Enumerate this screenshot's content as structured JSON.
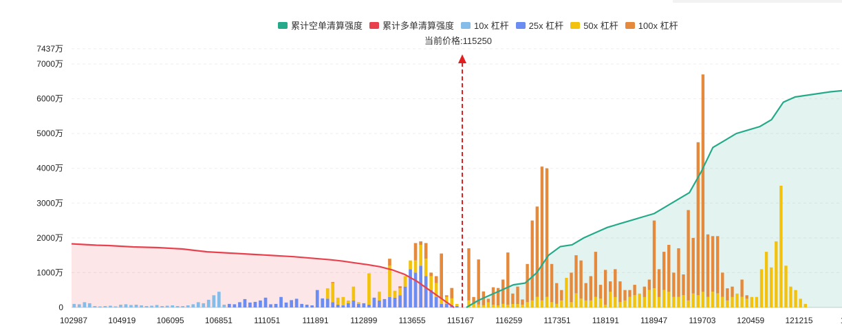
{
  "chart_data": {
    "type": "bar",
    "title": "",
    "price_label": "当前价格:115250",
    "current_price_marker": 115250,
    "y_unit": "万",
    "ylim": [
      0,
      7437
    ],
    "y_ticks": [
      "0",
      "1000万",
      "2000万",
      "3000万",
      "4000万",
      "5000万",
      "6000万",
      "7000万",
      "7437万"
    ],
    "x_ticks": [
      "102987",
      "104919",
      "106095",
      "106851",
      "111051",
      "111891",
      "112899",
      "113655",
      "115167",
      "116259",
      "117351",
      "118191",
      "118947",
      "119703",
      "120459",
      "121215",
      "122"
    ],
    "legend": [
      {
        "name": "累计空单清算强度",
        "color": "#26a98a"
      },
      {
        "name": "累计多单清算强度",
        "color": "#e8414d"
      },
      {
        "name": "10x 杠杆",
        "color": "#86bde8"
      },
      {
        "name": "25x 杠杆",
        "color": "#6b8cf0"
      },
      {
        "name": "50x 杠杆",
        "color": "#f2c20f"
      },
      {
        "name": "100x 杠杆",
        "color": "#e58a3c"
      }
    ],
    "bars_left": [
      {
        "lev10": 100
      },
      {
        "lev10": 90
      },
      {
        "lev10": 150
      },
      {
        "lev10": 120
      },
      {
        "lev10": 40
      },
      {
        "lev10": 30
      },
      {
        "lev10": 40
      },
      {
        "lev10": 50
      },
      {
        "lev10": 30
      },
      {
        "lev10": 80
      },
      {
        "lev10": 90
      },
      {
        "lev10": 70
      },
      {
        "lev10": 80
      },
      {
        "lev10": 60
      },
      {
        "lev10": 40
      },
      {
        "lev10": 50
      },
      {
        "lev10": 70
      },
      {
        "lev10": 40
      },
      {
        "lev10": 50
      },
      {
        "lev10": 60
      },
      {
        "lev10": 40
      },
      {
        "lev10": 40
      },
      {
        "lev10": 60
      },
      {
        "lev10": 90
      },
      {
        "lev10": 150
      },
      {
        "lev10": 120
      },
      {
        "lev10": 220
      },
      {
        "lev10": 350
      },
      {
        "lev10": 450
      },
      {
        "lev10": 80
      },
      {
        "lev25": 100
      },
      {
        "lev25": 90
      },
      {
        "lev25": 150
      },
      {
        "lev25": 240
      },
      {
        "lev25": 140
      },
      {
        "lev25": 160
      },
      {
        "lev25": 200
      },
      {
        "lev25": 280
      },
      {
        "lev25": 90
      },
      {
        "lev25": 100
      },
      {
        "lev25": 300
      },
      {
        "lev25": 140
      },
      {
        "lev25": 210
      },
      {
        "lev25": 250
      },
      {
        "lev25": 100
      },
      {
        "lev25": 80
      },
      {
        "lev25": 60
      },
      {
        "lev25": 500
      },
      {
        "lev25": 260
      },
      {
        "lev25": 250,
        "lev50": 300,
        "lev100": 0
      },
      {
        "lev25": 150,
        "lev50": 550,
        "lev100": 30
      },
      {
        "lev25": 80,
        "lev50": 200
      },
      {
        "lev25": 60,
        "lev50": 240
      },
      {
        "lev25": 120,
        "lev50": 80
      },
      {
        "lev25": 200,
        "lev50": 400
      },
      {
        "lev25": 100,
        "lev50": 50
      },
      {
        "lev25": 120
      },
      {
        "lev25": 80,
        "lev50": 900
      },
      {
        "lev25": 280
      },
      {
        "lev25": 200,
        "lev50": 250
      },
      {
        "lev25": 240
      },
      {
        "lev25": 300,
        "lev50": 900,
        "lev100": 200
      },
      {
        "lev25": 280,
        "lev50": 200
      },
      {
        "lev25": 350,
        "lev50": 200,
        "lev100": 60
      },
      {
        "lev25": 600,
        "lev50": 300,
        "lev100": 0
      },
      {
        "lev25": 1100,
        "lev50": 250,
        "lev100": 0
      },
      {
        "lev25": 1000,
        "lev50": 350,
        "lev100": 500
      },
      {
        "lev25": 1200,
        "lev50": 600,
        "lev100": 100
      },
      {
        "lev25": 900,
        "lev50": 500,
        "lev100": 450
      },
      {
        "lev25": 500,
        "lev50": 400,
        "lev100": 100
      },
      {
        "lev25": 300,
        "lev50": 400,
        "lev100": 200
      },
      {
        "lev25": 100,
        "lev50": 150,
        "lev100": 1300
      },
      {
        "lev25": 100,
        "lev50": 200,
        "lev100": 50
      },
      {
        "lev25": 60,
        "lev50": 200,
        "lev100": 300
      },
      {
        "lev25": 40,
        "lev50": 60
      }
    ],
    "bars_right": [
      {
        "lev50": 200,
        "lev100": 1500
      },
      {
        "lev50": 100,
        "lev100": 200
      },
      {
        "lev50": 80,
        "lev100": 1300
      },
      {
        "lev50": 60,
        "lev100": 400
      },
      {
        "lev50": 150,
        "lev100": 100
      },
      {
        "lev50": 80,
        "lev100": 500
      },
      {
        "lev50": 60,
        "lev100": 500
      },
      {
        "lev50": 100,
        "lev100": 700
      },
      {
        "lev50": 80,
        "lev100": 1500
      },
      {
        "lev50": 100,
        "lev100": 300
      },
      {
        "lev50": 100,
        "lev100": 500
      },
      {
        "lev50": 80,
        "lev100": 150
      },
      {
        "lev50": 150,
        "lev100": 1100
      },
      {
        "lev50": 200,
        "lev100": 2300
      },
      {
        "lev50": 300,
        "lev100": 2600
      },
      {
        "lev50": 200,
        "lev100": 3850
      },
      {
        "lev50": 300,
        "lev100": 3700
      },
      {
        "lev50": 150,
        "lev100": 1100
      },
      {
        "lev50": 100,
        "lev100": 600
      },
      {
        "lev50": 200,
        "lev100": 300
      },
      {
        "lev50": 850,
        "lev100": 0
      },
      {
        "lev50": 150,
        "lev100": 850
      },
      {
        "lev50": 400,
        "lev100": 1100
      },
      {
        "lev50": 250,
        "lev100": 1100
      },
      {
        "lev50": 200,
        "lev100": 500
      },
      {
        "lev50": 200,
        "lev100": 700
      },
      {
        "lev50": 300,
        "lev100": 1300
      },
      {
        "lev50": 250,
        "lev100": 400
      },
      {
        "lev50": 80,
        "lev100": 1000
      },
      {
        "lev50": 450,
        "lev100": 300
      },
      {
        "lev50": 300,
        "lev100": 800
      },
      {
        "lev50": 150,
        "lev100": 600
      },
      {
        "lev50": 200,
        "lev100": 300
      },
      {
        "lev50": 300,
        "lev100": 200
      },
      {
        "lev50": 350,
        "lev100": 300
      },
      {
        "lev50": 400,
        "lev100": 0
      },
      {
        "lev50": 300,
        "lev100": 300
      },
      {
        "lev50": 500,
        "lev100": 300
      },
      {
        "lev50": 550,
        "lev100": 1950
      },
      {
        "lev50": 300,
        "lev100": 800
      },
      {
        "lev50": 500,
        "lev100": 1100
      },
      {
        "lev50": 450,
        "lev100": 1350
      },
      {
        "lev50": 300,
        "lev100": 700
      },
      {
        "lev50": 300,
        "lev100": 1400
      },
      {
        "lev50": 350,
        "lev100": 600
      },
      {
        "lev50": 200,
        "lev100": 2600
      },
      {
        "lev50": 400,
        "lev100": 1600
      },
      {
        "lev50": 350,
        "lev100": 4400
      },
      {
        "lev50": 450,
        "lev100": 6250
      },
      {
        "lev50": 300,
        "lev100": 1800
      },
      {
        "lev50": 450,
        "lev100": 1600
      },
      {
        "lev50": 400,
        "lev100": 1650
      },
      {
        "lev50": 300,
        "lev100": 700
      },
      {
        "lev50": 200,
        "lev100": 350
      },
      {
        "lev50": 300,
        "lev100": 300
      },
      {
        "lev50": 400,
        "lev100": 0
      },
      {
        "lev50": 300,
        "lev100": 500
      },
      {
        "lev50": 250,
        "lev100": 100
      },
      {
        "lev50": 300,
        "lev100": 0
      },
      {
        "lev50": 300,
        "lev100": 0
      },
      {
        "lev50": 1100,
        "lev100": 0
      },
      {
        "lev50": 1600,
        "lev100": 0
      },
      {
        "lev50": 1150,
        "lev100": 0
      },
      {
        "lev50": 1900,
        "lev100": 0
      },
      {
        "lev50": 3500,
        "lev100": 0
      },
      {
        "lev50": 1200,
        "lev100": 0
      },
      {
        "lev50": 600,
        "lev100": 0
      },
      {
        "lev50": 500,
        "lev100": 0
      },
      {
        "lev50": 250,
        "lev100": 0
      },
      {
        "lev50": 100,
        "lev100": 0
      },
      {
        "lev50": 0,
        "lev100": 0
      },
      {
        "lev50": 0,
        "lev100": 0
      },
      {
        "lev50": 0,
        "lev100": 0
      },
      {
        "lev50": 0,
        "lev100": 0
      },
      {
        "lev50": 0,
        "lev100": 0
      },
      {
        "lev50": 0,
        "lev100": 0
      },
      {
        "lev50": 0,
        "lev100": 0
      }
    ],
    "long_cumulative": [
      1830,
      1810,
      1790,
      1780,
      1760,
      1740,
      1730,
      1720,
      1700,
      1680,
      1640,
      1600,
      1580,
      1560,
      1540,
      1520,
      1500,
      1480,
      1460,
      1430,
      1400,
      1370,
      1330,
      1280,
      1230,
      1170,
      1080,
      950,
      750,
      500,
      250,
      0
    ],
    "short_cumulative": [
      0,
      200,
      350,
      500,
      650,
      700,
      1000,
      1500,
      1750,
      1800,
      2000,
      2150,
      2300,
      2400,
      2500,
      2600,
      2700,
      2900,
      3100,
      3300,
      3900,
      4600,
      4800,
      5000,
      5100,
      5200,
      5400,
      5900,
      6050,
      6100,
      6150,
      6200,
      6230
    ]
  }
}
